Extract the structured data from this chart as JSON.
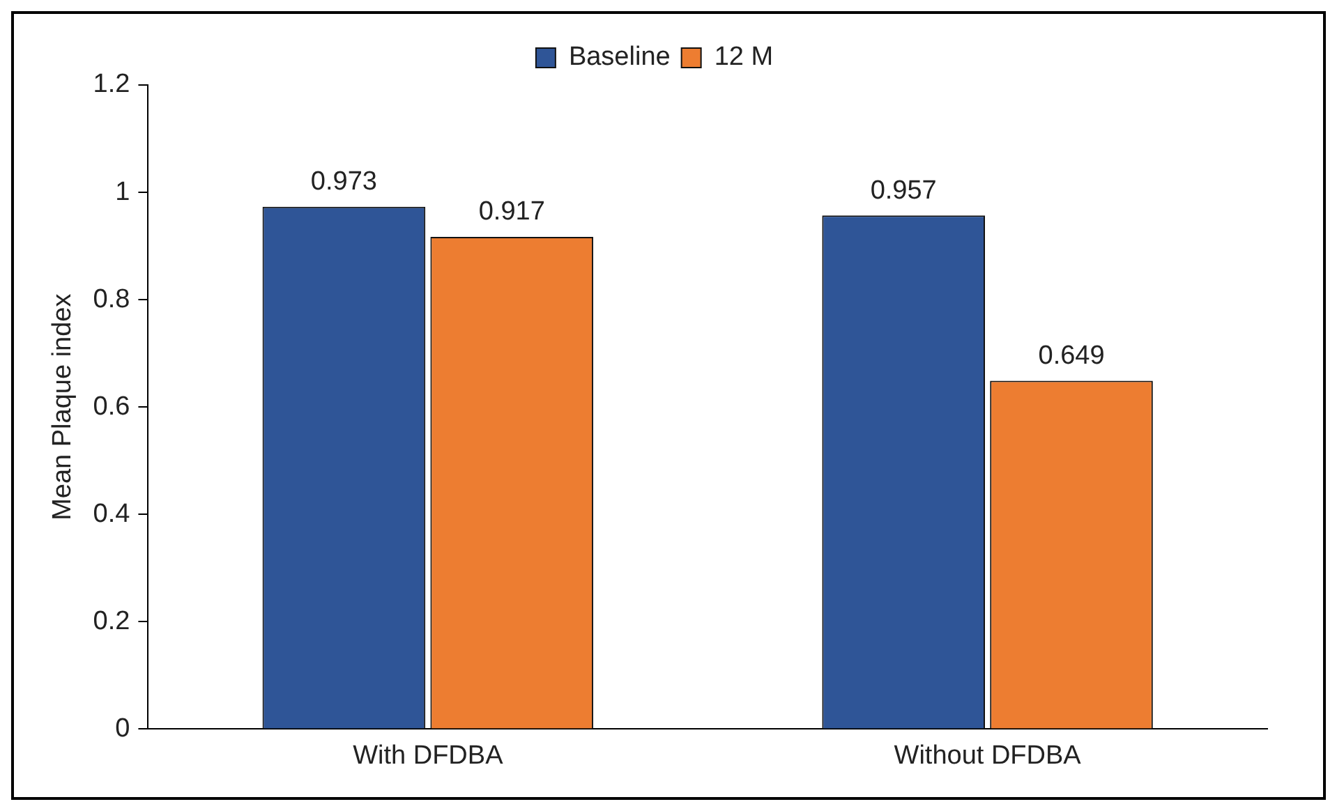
{
  "chart_data": {
    "type": "bar",
    "ylabel": "Mean Plaque index",
    "categories": [
      "With DFDBA",
      "Without DFDBA"
    ],
    "series": [
      {
        "name": "Baseline",
        "color": "#2f5597",
        "values": [
          0.973,
          0.957
        ]
      },
      {
        "name": "12 M",
        "color": "#ed7d31",
        "values": [
          0.917,
          0.649
        ]
      }
    ],
    "ylim": [
      0,
      1.2
    ],
    "yticks": [
      0,
      0.2,
      0.4,
      0.6,
      0.8,
      1,
      1.2
    ],
    "grid": false,
    "legend": "top",
    "data_labels": true
  }
}
